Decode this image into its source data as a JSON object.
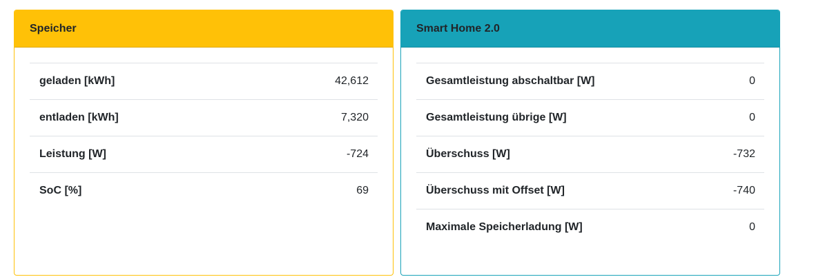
{
  "storage": {
    "title": "Speicher",
    "accent": "#ffc107",
    "rows": [
      {
        "label": "geladen [kWh]",
        "value": "42,612"
      },
      {
        "label": "entladen [kWh]",
        "value": "7,320"
      },
      {
        "label": "Leistung [W]",
        "value": "-724"
      },
      {
        "label": "SoC [%]",
        "value": "69"
      }
    ]
  },
  "smarthome": {
    "title": "Smart Home 2.0",
    "accent": "#17a2b8",
    "rows": [
      {
        "label": "Gesamtleistung abschaltbar [W]",
        "value": "0"
      },
      {
        "label": "Gesamtleistung übrige [W]",
        "value": "0"
      },
      {
        "label": "Überschuss [W]",
        "value": "-732"
      },
      {
        "label": "Überschuss mit Offset [W]",
        "value": "-740"
      },
      {
        "label": "Maximale Speicherladung [W]",
        "value": "0"
      }
    ]
  }
}
